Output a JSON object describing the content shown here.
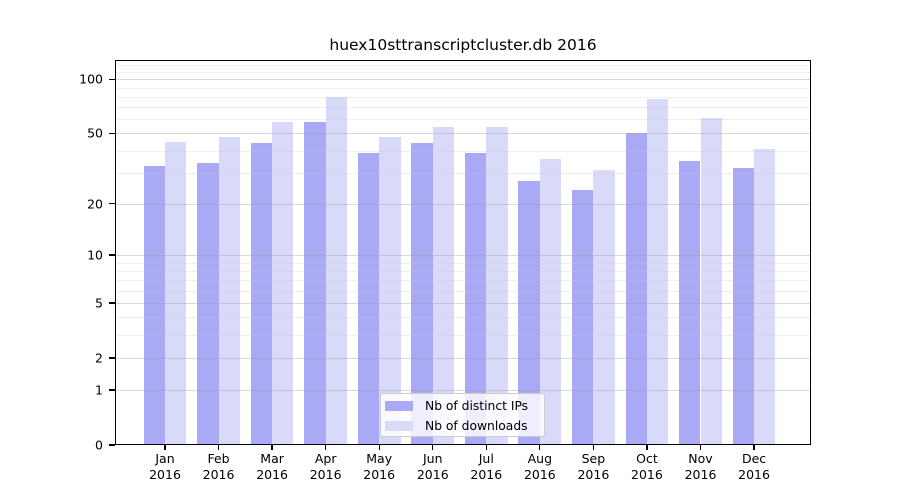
{
  "figure": {
    "title": "huex10sttranscriptcluster.db 2016"
  },
  "chart_data": {
    "type": "bar",
    "title": "huex10sttranscriptcluster.db 2016",
    "categories": [
      "Jan 2016",
      "Feb 2016",
      "Mar 2016",
      "Apr 2016",
      "May 2016",
      "Jun 2016",
      "Jul 2016",
      "Aug 2016",
      "Sep 2016",
      "Oct 2016",
      "Nov 2016",
      "Dec 2016"
    ],
    "series": [
      {
        "name": "Nb of distinct IPs",
        "color": "#a9a9f6",
        "values": [
          33,
          34,
          44,
          58,
          39,
          44,
          39,
          27,
          24,
          50,
          35,
          32
        ]
      },
      {
        "name": "Nb of downloads",
        "color": "#d9d9f9",
        "values": [
          45,
          48,
          58,
          80,
          48,
          54,
          54,
          36,
          31,
          78,
          61,
          41
        ]
      }
    ],
    "yscale": "log1p",
    "ylim": [
      0,
      128
    ],
    "yticks_major": [
      100,
      50,
      20,
      10,
      5,
      2,
      1,
      0
    ],
    "yticks_minor": [
      3,
      4,
      6,
      7,
      8,
      9,
      30,
      40,
      60,
      70,
      80,
      90,
      110,
      120
    ],
    "grid": true,
    "legend_position": "lower center"
  },
  "legend": {
    "items": [
      {
        "label": "Nb of distinct IPs",
        "swatch": "#a9a9f6"
      },
      {
        "label": "Nb of downloads",
        "swatch": "#d9d9f9"
      }
    ]
  },
  "colors": {
    "bar_distinct_ips": "#a9a9f6",
    "bar_downloads": "#d9d9f9",
    "axis": "#000000",
    "grid_major": "#d9d9d9",
    "grid_minor": "#ebebeb",
    "background": "#ffffff"
  }
}
